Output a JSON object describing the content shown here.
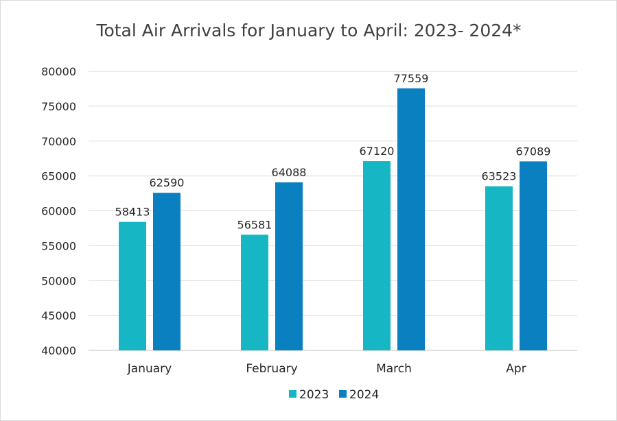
{
  "chart_data": {
    "type": "bar",
    "title": "Total Air Arrivals for January to April: 2023- 2024*",
    "categories": [
      "January",
      "February",
      "March",
      "Apr"
    ],
    "series": [
      {
        "name": "2023",
        "color": "#17b6c4",
        "values": [
          58413,
          56581,
          67120,
          63523
        ]
      },
      {
        "name": "2024",
        "color": "#0a80c0",
        "values": [
          62590,
          64088,
          77559,
          67089
        ]
      }
    ],
    "ylim": [
      40000,
      80000
    ],
    "yticks": [
      40000,
      45000,
      50000,
      55000,
      60000,
      65000,
      70000,
      75000,
      80000
    ],
    "xlabel": "",
    "ylabel": "",
    "grid": true,
    "legend_position": "bottom",
    "data_labels": true
  }
}
